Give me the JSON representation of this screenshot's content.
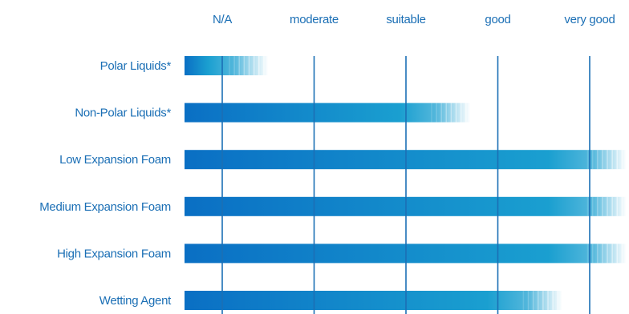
{
  "chart_data": {
    "type": "bar",
    "orientation": "horizontal",
    "title": "",
    "xlabel": "",
    "ylabel": "",
    "scale_levels": [
      "N/A",
      "moderate",
      "suitable",
      "good",
      "very good"
    ],
    "xlim": [
      0,
      4.4
    ],
    "grid": true,
    "categories": [
      "Polar Liquids*",
      "Non-Polar Liquids*",
      "Low Expansion Foam",
      "Medium Expansion Foam",
      "High Expansion Foam",
      "Wetting Agent"
    ],
    "values": [
      0.5,
      2.7,
      4.4,
      4.4,
      4.4,
      3.7
    ],
    "colors": {
      "bar_dark": "#0a6fc4",
      "bar_light": "#1a9fd0",
      "grid": "#1b6fb5",
      "text": "#1b6fb5"
    }
  }
}
